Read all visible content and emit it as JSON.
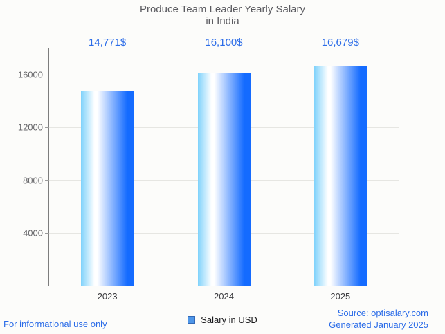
{
  "title": {
    "line1": "Produce Team Leader Yearly Salary",
    "line2": "in India"
  },
  "chart_data": {
    "type": "bar",
    "title": "Produce Team Leader Yearly Salary in India",
    "categories": [
      "2023",
      "2024",
      "2025"
    ],
    "values": [
      14771,
      16100,
      16679
    ],
    "value_labels": [
      "14,771$",
      "16,100$",
      "16,679$"
    ],
    "series_name": "Salary in USD",
    "xlabel": "",
    "ylabel": "",
    "ylim": [
      0,
      18000
    ],
    "yticks": [
      4000,
      8000,
      12000,
      16000
    ],
    "grid": true,
    "legend_position": "bottom",
    "bar_gradient": [
      "#7fd2fb",
      "#ffffff",
      "#146bff"
    ]
  },
  "legend": {
    "label": "Salary in USD"
  },
  "footer": {
    "left": "For informational use only",
    "source": "Source: optisalary.com",
    "generated": "Generated January 2025"
  },
  "colors": {
    "accent_blue": "#2b6ce8",
    "title_gray": "#5b5b60",
    "axis_gray": "#7d7d7d",
    "grid_gray": "#e6e6e2",
    "background": "#fcfcfa",
    "legend_marker_fill": "#4e96e8",
    "legend_marker_border": "#3268b5"
  }
}
